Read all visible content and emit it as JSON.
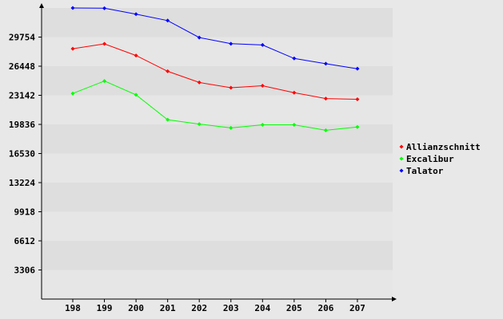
{
  "colors": {
    "background": "#e8e8e8",
    "band_light": "#e6e6e6",
    "band_dark": "#dedede",
    "axis": "#000000"
  },
  "chart_data": {
    "type": "line",
    "title": "",
    "xlabel": "",
    "ylabel": "",
    "categories": [
      "198",
      "199",
      "200",
      "201",
      "202",
      "203",
      "204",
      "205",
      "206",
      "207"
    ],
    "y_ticks": [
      "3306",
      "6612",
      "9918",
      "13224",
      "16530",
      "19836",
      "23142",
      "26448",
      "29754"
    ],
    "ylim": [
      0,
      33060
    ],
    "grid": "alternating horizontal bands",
    "legend_position": "right",
    "series": [
      {
        "name": "Allianzschnitt",
        "color": "#ff0000",
        "values": [
          28430,
          28980,
          27660,
          25870,
          24600,
          24000,
          24230,
          23440,
          22770,
          22690
        ]
      },
      {
        "name": "Excalibur",
        "color": "#00ff00",
        "values": [
          23350,
          24760,
          23200,
          20370,
          19870,
          19440,
          19790,
          19790,
          19170,
          19540
        ]
      },
      {
        "name": "Talator",
        "color": "#0000ff",
        "values": [
          33060,
          33030,
          32360,
          31630,
          29700,
          29000,
          28860,
          27330,
          26730,
          26160
        ]
      }
    ]
  }
}
